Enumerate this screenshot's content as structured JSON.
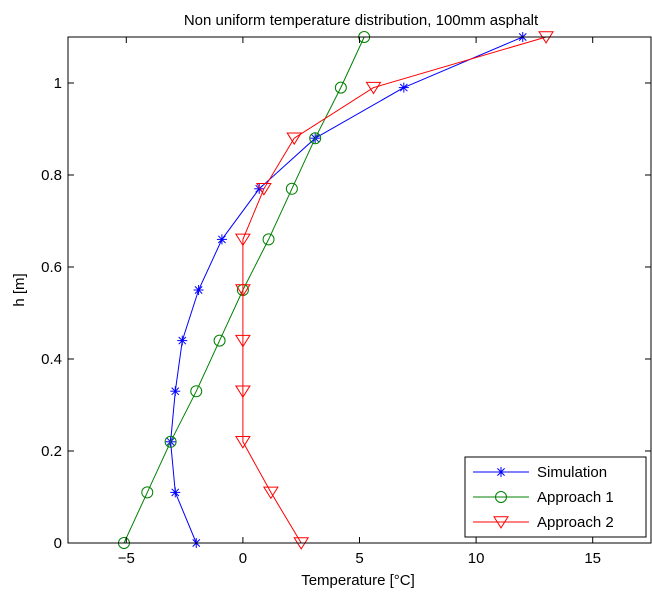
{
  "chart_data": {
    "type": "line",
    "title": "Non uniform temperature distribution, 100mm asphalt",
    "xlabel": "Temperature [°C]",
    "ylabel": "h [m]",
    "xlim": [
      -7.5,
      17.5
    ],
    "ylim": [
      0,
      1.1
    ],
    "xticks": [
      -5,
      0,
      5,
      10,
      15
    ],
    "yticks": [
      0,
      0.2,
      0.4,
      0.6,
      0.8,
      1
    ],
    "xtick_labels": [
      "−5",
      "0",
      "5",
      "10",
      "15"
    ],
    "ytick_labels": [
      "0",
      "0.2",
      "0.4",
      "0.6",
      "0.8",
      "1"
    ],
    "grid": false,
    "legend_position": "bottom-right",
    "series": [
      {
        "name": "Simulation",
        "color": "#0000ff",
        "marker": "asterisk",
        "x": [
          -2.0,
          -2.9,
          -3.1,
          -2.9,
          -2.6,
          -1.9,
          -0.9,
          0.7,
          3.1,
          6.9,
          12.0
        ],
        "y": [
          0,
          0.11,
          0.22,
          0.33,
          0.44,
          0.55,
          0.66,
          0.77,
          0.88,
          0.99,
          1.1
        ]
      },
      {
        "name": "Approach 1",
        "color": "#008000",
        "marker": "circle",
        "x": [
          -5.1,
          -4.1,
          -3.1,
          -2.0,
          -1.0,
          0.0,
          1.1,
          2.1,
          3.1,
          4.2,
          5.2
        ],
        "y": [
          0,
          0.11,
          0.22,
          0.33,
          0.44,
          0.55,
          0.66,
          0.77,
          0.88,
          0.99,
          1.1
        ]
      },
      {
        "name": "Approach 2",
        "color": "#ff0000",
        "marker": "triangle-down",
        "x": [
          2.5,
          1.2,
          0.0,
          0.0,
          0.0,
          0.0,
          0.0,
          0.9,
          2.2,
          5.6,
          13.0
        ],
        "y": [
          0,
          0.11,
          0.22,
          0.33,
          0.44,
          0.55,
          0.66,
          0.77,
          0.88,
          0.99,
          1.1
        ]
      }
    ]
  }
}
